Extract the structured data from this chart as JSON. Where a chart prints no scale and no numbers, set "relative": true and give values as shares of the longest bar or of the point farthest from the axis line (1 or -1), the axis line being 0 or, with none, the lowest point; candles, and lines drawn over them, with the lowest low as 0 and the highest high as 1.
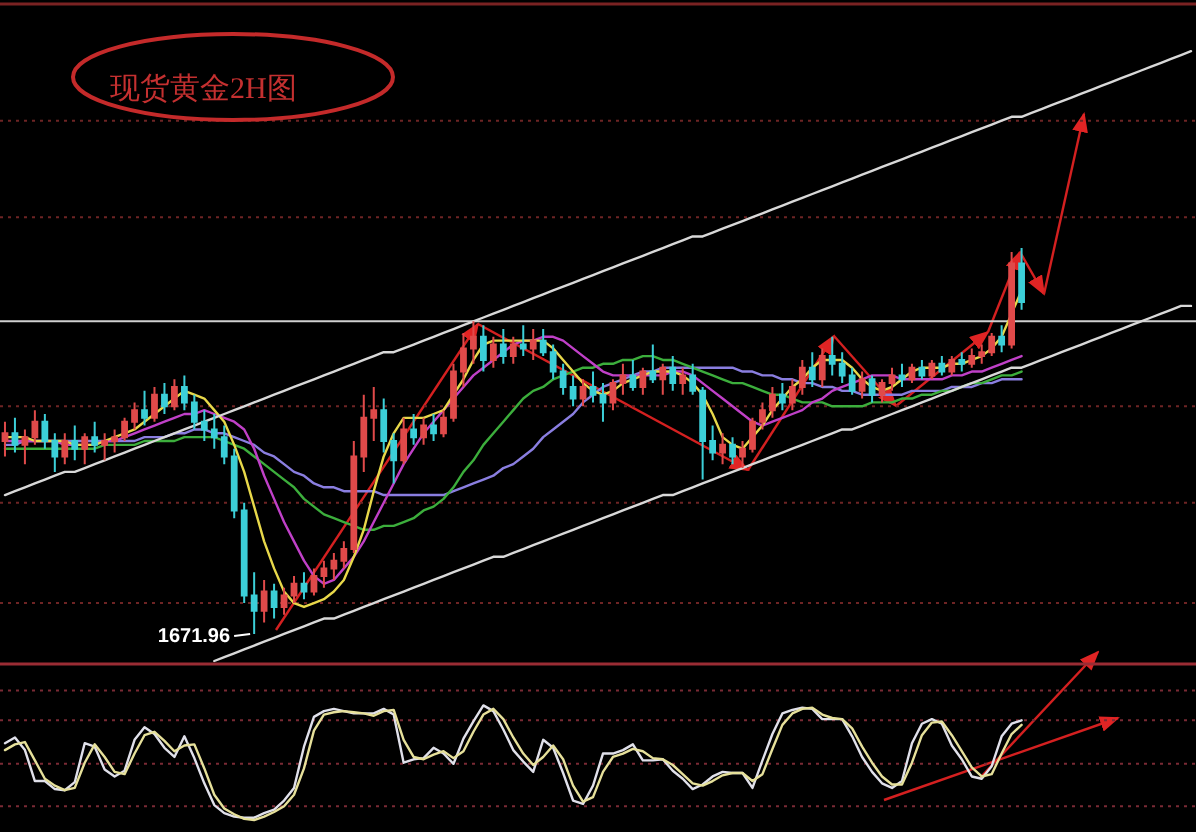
{
  "chart_data": [
    {
      "type": "candlestick",
      "title": "现货黄金2H图",
      "relative": true,
      "categories": [
        null,
        null,
        null,
        null,
        null,
        null,
        null,
        null,
        null,
        null,
        null,
        null,
        null,
        null,
        null,
        null,
        null,
        null,
        null,
        null,
        null,
        null,
        null,
        null,
        null,
        null,
        null,
        null,
        null,
        null,
        null,
        null,
        null,
        null,
        null,
        null,
        null,
        null,
        null,
        null,
        null,
        null,
        null,
        null,
        null,
        null,
        null,
        null,
        null,
        null,
        null,
        null,
        null,
        null,
        null,
        null,
        null,
        null,
        null,
        null,
        null,
        null,
        null,
        null,
        null,
        null,
        null,
        null,
        null,
        null,
        null,
        null,
        null,
        null,
        null,
        null,
        null,
        null,
        null,
        null,
        null,
        null,
        null,
        null,
        null,
        null,
        null,
        null,
        null,
        null,
        null,
        null,
        null,
        null,
        null,
        null,
        null,
        null,
        null,
        null,
        null,
        null,
        null,
        null,
        null,
        null,
        null,
        null,
        null,
        null,
        null,
        null,
        null,
        null,
        null,
        null,
        null,
        null,
        null,
        null
      ],
      "ohlc": [
        [
          0.5,
          0.55,
          0.46,
          0.52
        ],
        [
          0.52,
          0.56,
          0.47,
          0.49
        ],
        [
          0.49,
          0.53,
          0.44,
          0.51
        ],
        [
          0.51,
          0.58,
          0.49,
          0.55
        ],
        [
          0.55,
          0.57,
          0.48,
          0.5
        ],
        [
          0.5,
          0.52,
          0.42,
          0.46
        ],
        [
          0.46,
          0.52,
          0.44,
          0.5
        ],
        [
          0.5,
          0.54,
          0.45,
          0.48
        ],
        [
          0.48,
          0.52,
          0.44,
          0.51
        ],
        [
          0.51,
          0.55,
          0.47,
          0.49
        ],
        [
          0.49,
          0.52,
          0.45,
          0.5
        ],
        [
          0.5,
          0.53,
          0.47,
          0.51
        ],
        [
          0.51,
          0.56,
          0.5,
          0.55
        ],
        [
          0.55,
          0.6,
          0.53,
          0.58
        ],
        [
          0.58,
          0.63,
          0.54,
          0.56
        ],
        [
          0.56,
          0.64,
          0.55,
          0.62
        ],
        [
          0.62,
          0.65,
          0.57,
          0.59
        ],
        [
          0.59,
          0.66,
          0.58,
          0.64
        ],
        [
          0.64,
          0.67,
          0.58,
          0.6
        ],
        [
          0.6,
          0.62,
          0.53,
          0.55
        ],
        [
          0.55,
          0.58,
          0.5,
          0.53
        ],
        [
          0.53,
          0.57,
          0.48,
          0.51
        ],
        [
          0.51,
          0.54,
          0.44,
          0.46
        ],
        [
          0.46,
          0.48,
          0.3,
          0.32
        ],
        [
          0.32,
          0.34,
          0.08,
          0.1
        ],
        [
          0.1,
          0.16,
          0.0,
          0.06
        ],
        [
          0.06,
          0.14,
          0.03,
          0.11
        ],
        [
          0.11,
          0.13,
          0.04,
          0.07
        ],
        [
          0.07,
          0.12,
          0.05,
          0.1
        ],
        [
          0.1,
          0.15,
          0.08,
          0.13
        ],
        [
          0.13,
          0.16,
          0.09,
          0.11
        ],
        [
          0.11,
          0.17,
          0.1,
          0.15
        ],
        [
          0.15,
          0.19,
          0.12,
          0.17
        ],
        [
          0.17,
          0.21,
          0.14,
          0.19
        ],
        [
          0.19,
          0.24,
          0.17,
          0.22
        ],
        [
          0.22,
          0.5,
          0.21,
          0.46
        ],
        [
          0.46,
          0.62,
          0.42,
          0.56
        ],
        [
          0.56,
          0.64,
          0.5,
          0.58
        ],
        [
          0.58,
          0.61,
          0.47,
          0.5
        ],
        [
          0.5,
          0.52,
          0.39,
          0.45
        ],
        [
          0.45,
          0.56,
          0.44,
          0.53
        ],
        [
          0.53,
          0.57,
          0.49,
          0.51
        ],
        [
          0.51,
          0.56,
          0.49,
          0.54
        ],
        [
          0.54,
          0.57,
          0.5,
          0.52
        ],
        [
          0.52,
          0.58,
          0.51,
          0.56
        ],
        [
          0.56,
          0.7,
          0.55,
          0.68
        ],
        [
          0.68,
          0.78,
          0.64,
          0.74
        ],
        [
          0.74,
          0.81,
          0.7,
          0.77
        ],
        [
          0.77,
          0.8,
          0.68,
          0.71
        ],
        [
          0.71,
          0.77,
          0.69,
          0.75
        ],
        [
          0.75,
          0.79,
          0.7,
          0.72
        ],
        [
          0.72,
          0.77,
          0.7,
          0.75
        ],
        [
          0.75,
          0.8,
          0.72,
          0.74
        ],
        [
          0.74,
          0.79,
          0.71,
          0.76
        ],
        [
          0.76,
          0.79,
          0.72,
          0.73
        ],
        [
          0.73,
          0.75,
          0.66,
          0.68
        ],
        [
          0.68,
          0.7,
          0.62,
          0.64
        ],
        [
          0.64,
          0.67,
          0.59,
          0.61
        ],
        [
          0.61,
          0.66,
          0.59,
          0.64
        ],
        [
          0.64,
          0.68,
          0.6,
          0.62
        ],
        [
          0.62,
          0.65,
          0.55,
          0.6
        ],
        [
          0.6,
          0.66,
          0.58,
          0.65
        ],
        [
          0.65,
          0.7,
          0.62,
          0.67
        ],
        [
          0.67,
          0.71,
          0.63,
          0.64
        ],
        [
          0.64,
          0.69,
          0.62,
          0.68
        ],
        [
          0.68,
          0.75,
          0.65,
          0.66
        ],
        [
          0.66,
          0.7,
          0.62,
          0.69
        ],
        [
          0.69,
          0.72,
          0.63,
          0.65
        ],
        [
          0.65,
          0.69,
          0.62,
          0.67
        ],
        [
          0.67,
          0.7,
          0.62,
          0.63
        ],
        [
          0.63,
          0.64,
          0.4,
          0.5
        ],
        [
          0.5,
          0.54,
          0.45,
          0.47
        ],
        [
          0.47,
          0.52,
          0.44,
          0.49
        ],
        [
          0.49,
          0.51,
          0.44,
          0.46
        ],
        [
          0.46,
          0.5,
          0.43,
          0.48
        ],
        [
          0.48,
          0.56,
          0.47,
          0.55
        ],
        [
          0.55,
          0.6,
          0.53,
          0.58
        ],
        [
          0.58,
          0.64,
          0.56,
          0.62
        ],
        [
          0.62,
          0.65,
          0.58,
          0.6
        ],
        [
          0.6,
          0.66,
          0.58,
          0.64
        ],
        [
          0.64,
          0.71,
          0.62,
          0.69
        ],
        [
          0.69,
          0.73,
          0.64,
          0.66
        ],
        [
          0.66,
          0.74,
          0.64,
          0.72
        ],
        [
          0.72,
          0.77,
          0.67,
          0.7
        ],
        [
          0.7,
          0.73,
          0.65,
          0.67
        ],
        [
          0.67,
          0.69,
          0.62,
          0.63
        ],
        [
          0.63,
          0.68,
          0.61,
          0.66
        ],
        [
          0.66,
          0.67,
          0.6,
          0.62
        ],
        [
          0.62,
          0.66,
          0.6,
          0.65
        ],
        [
          0.65,
          0.69,
          0.63,
          0.67
        ],
        [
          0.67,
          0.7,
          0.64,
          0.66
        ],
        [
          0.66,
          0.7,
          0.65,
          0.69
        ],
        [
          0.69,
          0.71,
          0.66,
          0.67
        ],
        [
          0.67,
          0.71,
          0.66,
          0.7
        ],
        [
          0.7,
          0.72,
          0.67,
          0.68
        ],
        [
          0.68,
          0.72,
          0.67,
          0.71
        ],
        [
          0.71,
          0.73,
          0.68,
          0.7
        ],
        [
          0.7,
          0.74,
          0.69,
          0.72
        ],
        [
          0.72,
          0.75,
          0.7,
          0.73
        ],
        [
          0.73,
          0.78,
          0.72,
          0.77
        ],
        [
          0.77,
          0.8,
          0.73,
          0.75
        ],
        [
          0.75,
          0.99,
          0.74,
          0.96
        ],
        [
          0.96,
          1.0,
          0.84,
          0.86
        ],
        null,
        null,
        null,
        null,
        null,
        null,
        null,
        null,
        null,
        null,
        null,
        null,
        null,
        null,
        null,
        null,
        null
      ],
      "colors": [
        "#e04a4a",
        "#3ccfd8",
        "#e04a4a",
        "#e04a4a",
        "#3ccfd8",
        "#3ccfd8",
        "#e04a4a",
        "#3ccfd8",
        "#e04a4a",
        "#3ccfd8",
        "#e04a4a",
        "#e04a4a",
        "#e04a4a",
        "#e04a4a",
        "#3ccfd8",
        "#e04a4a",
        "#3ccfd8",
        "#e04a4a",
        "#3ccfd8",
        "#3ccfd8",
        "#3ccfd8",
        "#3ccfd8",
        "#3ccfd8",
        "#3ccfd8",
        "#3ccfd8",
        "#3ccfd8",
        "#e04a4a",
        "#3ccfd8",
        "#e04a4a",
        "#e04a4a",
        "#3ccfd8",
        "#e04a4a",
        "#e04a4a",
        "#e04a4a",
        "#e04a4a",
        "#e04a4a",
        "#e04a4a",
        "#e04a4a",
        "#3ccfd8",
        "#3ccfd8",
        "#e04a4a",
        "#3ccfd8",
        "#e04a4a",
        "#3ccfd8",
        "#e04a4a",
        "#e04a4a",
        "#e04a4a",
        "#e04a4a",
        "#3ccfd8",
        "#e04a4a",
        "#3ccfd8",
        "#e04a4a",
        "#3ccfd8",
        "#e04a4a",
        "#3ccfd8",
        "#3ccfd8",
        "#3ccfd8",
        "#3ccfd8",
        "#e04a4a",
        "#3ccfd8",
        "#3ccfd8",
        "#e04a4a",
        "#e04a4a",
        "#3ccfd8",
        "#e04a4a",
        "#3ccfd8",
        "#e04a4a",
        "#3ccfd8",
        "#e04a4a",
        "#3ccfd8",
        "#3ccfd8",
        "#3ccfd8",
        "#e04a4a",
        "#3ccfd8",
        "#e04a4a",
        "#e04a4a",
        "#e04a4a",
        "#e04a4a",
        "#3ccfd8",
        "#e04a4a",
        "#e04a4a",
        "#3ccfd8",
        "#e04a4a",
        "#3ccfd8",
        "#3ccfd8",
        "#3ccfd8",
        "#e04a4a",
        "#3ccfd8",
        "#e04a4a",
        "#e04a4a",
        "#3ccfd8",
        "#e04a4a",
        "#3ccfd8",
        "#e04a4a",
        "#3ccfd8",
        "#e04a4a",
        "#3ccfd8",
        "#e04a4a",
        "#e04a4a",
        "#e04a4a",
        "#3ccfd8",
        "#e04a4a",
        "#3ccfd8",
        null,
        null,
        null,
        null,
        null,
        null,
        null,
        null,
        null,
        null,
        null,
        null,
        null,
        null,
        null,
        null,
        null
      ],
      "series": [
        {
          "type": "line",
          "color": "#8a7ee0",
          "values": [
            0.49,
            0.49,
            0.5,
            0.5,
            0.5,
            0.5,
            0.5,
            0.5,
            0.5,
            0.5,
            0.5,
            0.5,
            0.5,
            0.5,
            0.51,
            0.51,
            0.51,
            0.52,
            0.52,
            0.53,
            0.53,
            0.52,
            0.52,
            0.51,
            0.5,
            0.49,
            0.47,
            0.46,
            0.44,
            0.42,
            0.41,
            0.39,
            0.38,
            0.38,
            0.37,
            0.37,
            0.37,
            0.37,
            0.36,
            0.36,
            0.36,
            0.36,
            0.36,
            0.36,
            0.36,
            0.37,
            0.38,
            0.39,
            0.4,
            0.41,
            0.43,
            0.44,
            0.46,
            0.48,
            0.51,
            0.53,
            0.55,
            0.57,
            0.6,
            0.62,
            0.64,
            0.65,
            0.66,
            0.67,
            0.68,
            0.68,
            0.69,
            0.69,
            0.69,
            0.69,
            0.69,
            0.69,
            0.69,
            0.69,
            0.68,
            0.68,
            0.67,
            0.67,
            0.66,
            0.66,
            0.65,
            0.65,
            0.64,
            0.64,
            0.63,
            0.63,
            0.62,
            0.62,
            0.62,
            0.62,
            0.62,
            0.63,
            0.63,
            0.63,
            0.63,
            0.64,
            0.64,
            0.64,
            0.65,
            0.65,
            0.66,
            0.66,
            0.66,
            null,
            null,
            null,
            null,
            null,
            null,
            null,
            null,
            null,
            null,
            null,
            null,
            null,
            null,
            null,
            null,
            null
          ]
        },
        {
          "type": "line",
          "color": "#3cae3c",
          "values": [
            0.48,
            0.48,
            0.48,
            0.48,
            0.48,
            0.48,
            0.48,
            0.48,
            0.48,
            0.48,
            0.49,
            0.49,
            0.49,
            0.49,
            0.5,
            0.5,
            0.5,
            0.5,
            0.51,
            0.51,
            0.51,
            0.51,
            0.5,
            0.49,
            0.48,
            0.46,
            0.44,
            0.42,
            0.4,
            0.38,
            0.35,
            0.33,
            0.31,
            0.3,
            0.29,
            0.28,
            0.27,
            0.27,
            0.28,
            0.28,
            0.29,
            0.3,
            0.32,
            0.33,
            0.35,
            0.38,
            0.42,
            0.45,
            0.49,
            0.52,
            0.55,
            0.58,
            0.61,
            0.63,
            0.64,
            0.66,
            0.67,
            0.68,
            0.69,
            0.69,
            0.7,
            0.7,
            0.71,
            0.71,
            0.72,
            0.72,
            0.71,
            0.71,
            0.7,
            0.69,
            0.68,
            0.67,
            0.66,
            0.65,
            0.65,
            0.64,
            0.63,
            0.62,
            0.62,
            0.61,
            0.6,
            0.6,
            0.6,
            0.59,
            0.59,
            0.59,
            0.59,
            0.6,
            0.6,
            0.6,
            0.61,
            0.61,
            0.62,
            0.62,
            0.63,
            0.63,
            0.64,
            0.65,
            0.65,
            0.66,
            0.67,
            0.67,
            0.68,
            null,
            null,
            null,
            null,
            null,
            null,
            null,
            null,
            null,
            null,
            null,
            null,
            null,
            null,
            null,
            null,
            null
          ]
        },
        {
          "type": "line",
          "color": "#c040c8",
          "values": [
            0.5,
            0.5,
            0.5,
            0.5,
            0.5,
            0.5,
            0.49,
            0.49,
            0.49,
            0.49,
            0.5,
            0.5,
            0.51,
            0.52,
            0.53,
            0.54,
            0.55,
            0.56,
            0.57,
            0.57,
            0.58,
            0.57,
            0.56,
            0.55,
            0.53,
            0.48,
            0.41,
            0.35,
            0.29,
            0.24,
            0.19,
            0.15,
            0.13,
            0.14,
            0.17,
            0.2,
            0.24,
            0.29,
            0.34,
            0.39,
            0.44,
            0.48,
            0.52,
            0.55,
            0.58,
            0.61,
            0.64,
            0.67,
            0.69,
            0.71,
            0.73,
            0.75,
            0.76,
            0.76,
            0.77,
            0.77,
            0.76,
            0.74,
            0.72,
            0.7,
            0.68,
            0.67,
            0.67,
            0.67,
            0.67,
            0.67,
            0.67,
            0.68,
            0.68,
            0.67,
            0.65,
            0.63,
            0.61,
            0.59,
            0.57,
            0.55,
            0.54,
            0.55,
            0.56,
            0.57,
            0.58,
            0.6,
            0.61,
            0.63,
            0.64,
            0.65,
            0.66,
            0.67,
            0.67,
            0.67,
            0.66,
            0.66,
            0.66,
            0.66,
            0.66,
            0.67,
            0.67,
            0.68,
            0.68,
            0.69,
            0.7,
            0.71,
            0.72,
            null,
            null,
            null,
            null,
            null,
            null,
            null,
            null,
            null,
            null,
            null,
            null,
            null,
            null,
            null,
            null,
            null
          ]
        },
        {
          "type": "line",
          "color": "#e8d84a",
          "values": [
            0.51,
            0.51,
            0.51,
            0.5,
            0.5,
            0.5,
            0.5,
            0.49,
            0.49,
            0.49,
            0.5,
            0.51,
            0.52,
            0.53,
            0.55,
            0.57,
            0.59,
            0.61,
            0.63,
            0.62,
            0.61,
            0.58,
            0.55,
            0.49,
            0.42,
            0.33,
            0.24,
            0.17,
            0.11,
            0.08,
            0.07,
            0.08,
            0.09,
            0.11,
            0.14,
            0.2,
            0.27,
            0.37,
            0.46,
            0.52,
            0.56,
            0.56,
            0.56,
            0.57,
            0.58,
            0.62,
            0.66,
            0.71,
            0.75,
            0.76,
            0.76,
            0.76,
            0.76,
            0.76,
            0.76,
            0.74,
            0.71,
            0.68,
            0.65,
            0.63,
            0.62,
            0.63,
            0.65,
            0.66,
            0.67,
            0.68,
            0.68,
            0.68,
            0.67,
            0.65,
            0.62,
            0.57,
            0.51,
            0.49,
            0.48,
            0.51,
            0.54,
            0.58,
            0.61,
            0.64,
            0.66,
            0.69,
            0.71,
            0.71,
            0.71,
            0.69,
            0.66,
            0.64,
            0.63,
            0.64,
            0.66,
            0.68,
            0.69,
            0.69,
            0.69,
            0.7,
            0.7,
            0.71,
            0.72,
            0.74,
            0.77,
            0.83,
            0.89,
            null,
            null,
            null,
            null,
            null,
            null,
            null,
            null,
            null,
            null,
            null,
            null,
            null,
            null,
            null,
            null,
            null
          ]
        },
        {
          "type": "line",
          "color": "#d8d8d8",
          "values": [
            0.36,
            0.37,
            0.38,
            0.39,
            0.4,
            0.41,
            0.42,
            0.42,
            0.43,
            0.44,
            0.45,
            0.46,
            0.47,
            0.48,
            0.49,
            0.5,
            0.51,
            0.52,
            0.53,
            0.54,
            0.55,
            0.56,
            0.57,
            0.58,
            0.59,
            0.6,
            0.61,
            0.62,
            0.63,
            0.64,
            0.65,
            0.66,
            0.67,
            0.68,
            0.69,
            0.7,
            0.71,
            0.72,
            0.73,
            0.73,
            0.74,
            0.75,
            0.76,
            0.77,
            0.78,
            0.79,
            0.8,
            0.81,
            0.82,
            0.83,
            0.84,
            0.85,
            0.86,
            0.87,
            0.88,
            0.89,
            0.9,
            0.91,
            0.92,
            0.93,
            0.94,
            0.95,
            0.96,
            0.97,
            0.98,
            0.99,
            1.0,
            1.01,
            1.02,
            1.03,
            1.03,
            1.04,
            1.05,
            1.06,
            1.07,
            1.08,
            1.09,
            1.1,
            1.11,
            1.12,
            1.13,
            1.14,
            1.15,
            1.16,
            1.17,
            1.18,
            1.19,
            1.2,
            1.21,
            1.22,
            1.23,
            1.24,
            1.25,
            1.26,
            1.27,
            1.28,
            1.29,
            1.3,
            1.31,
            1.32,
            1.33,
            1.34,
            1.34,
            1.35,
            1.36,
            1.37,
            1.38,
            1.39,
            1.4,
            1.41,
            1.42,
            1.43,
            1.44,
            1.45,
            1.46,
            1.47,
            1.48,
            1.49,
            1.5,
            1.51
          ]
        },
        {
          "type": "line",
          "color": "#d8d8d8",
          "values": [
            null,
            null,
            null,
            null,
            null,
            null,
            null,
            null,
            null,
            null,
            null,
            null,
            null,
            null,
            null,
            null,
            null,
            null,
            null,
            null,
            null,
            -0.07,
            -0.06,
            -0.05,
            -0.04,
            -0.03,
            -0.02,
            -0.01,
            0.0,
            0.01,
            0.02,
            0.03,
            0.04,
            0.04,
            0.05,
            0.06,
            0.07,
            0.08,
            0.09,
            0.1,
            0.11,
            0.12,
            0.13,
            0.14,
            0.15,
            0.16,
            0.17,
            0.18,
            0.19,
            0.2,
            0.2,
            0.21,
            0.22,
            0.23,
            0.24,
            0.25,
            0.26,
            0.27,
            0.28,
            0.29,
            0.3,
            0.31,
            0.32,
            0.33,
            0.34,
            0.35,
            0.36,
            0.36,
            0.37,
            0.38,
            0.39,
            0.4,
            0.41,
            0.42,
            0.43,
            0.44,
            0.45,
            0.46,
            0.47,
            0.48,
            0.49,
            0.5,
            0.51,
            0.52,
            0.53,
            0.53,
            0.54,
            0.55,
            0.56,
            0.57,
            0.58,
            0.59,
            0.6,
            0.61,
            0.62,
            0.63,
            0.64,
            0.65,
            0.66,
            0.67,
            0.68,
            0.69,
            0.69,
            0.7,
            0.71,
            0.72,
            0.73,
            0.74,
            0.75,
            0.76,
            0.77,
            0.78,
            0.79,
            0.8,
            0.81,
            0.82,
            0.83,
            0.84,
            0.85,
            0.85
          ]
        }
      ],
      "ref_lines": [
        {
          "axis": "y",
          "value": 1.33,
          "color": "#6e2424",
          "line_style": "dotted"
        },
        {
          "axis": "y",
          "value": 1.08,
          "color": "#6e2424",
          "line_style": "dotted"
        },
        {
          "axis": "y",
          "value": 0.81,
          "color": "#d0d0d0",
          "line_style": "solid"
        },
        {
          "axis": "y",
          "value": 0.59,
          "color": "#6e2424",
          "line_style": "dotted"
        },
        {
          "axis": "y",
          "value": 0.34,
          "color": "#6e2424",
          "line_style": "dotted"
        },
        {
          "axis": "y",
          "value": 0.08,
          "color": "#6e2424",
          "line_style": "dotted"
        }
      ],
      "annotations": [
        "1671.96"
      ]
    },
    {
      "type": "line",
      "relative": true,
      "categories": [
        null,
        null,
        null,
        null,
        null,
        null,
        null,
        null,
        null,
        null,
        null,
        null,
        null,
        null,
        null,
        null,
        null,
        null,
        null,
        null,
        null,
        null,
        null,
        null,
        null,
        null,
        null,
        null,
        null,
        null,
        null,
        null,
        null,
        null,
        null,
        null,
        null,
        null,
        null,
        null,
        null,
        null,
        null,
        null,
        null,
        null,
        null,
        null,
        null,
        null,
        null,
        null,
        null,
        null,
        null,
        null,
        null,
        null,
        null,
        null,
        null,
        null,
        null,
        null,
        null,
        null,
        null,
        null,
        null,
        null,
        null,
        null,
        null,
        null,
        null,
        null,
        null,
        null,
        null,
        null,
        null,
        null,
        null,
        null,
        null,
        null,
        null,
        null,
        null,
        null,
        null,
        null,
        null,
        null,
        null,
        null,
        null,
        null,
        null,
        null,
        null,
        null,
        null,
        null,
        null,
        null,
        null,
        null,
        null,
        null,
        null,
        null,
        null,
        null,
        null,
        null,
        null,
        null,
        null,
        null
      ],
      "series": [
        {
          "color": "#e0e0ea",
          "values": [
            0.67,
            0.72,
            0.61,
            0.34,
            0.34,
            0.27,
            0.26,
            0.33,
            0.67,
            0.64,
            0.44,
            0.38,
            0.43,
            0.7,
            0.81,
            0.75,
            0.63,
            0.55,
            0.73,
            0.54,
            0.32,
            0.13,
            0.06,
            0.03,
            0.02,
            0.02,
            0.06,
            0.09,
            0.17,
            0.28,
            0.64,
            0.9,
            0.95,
            0.97,
            0.95,
            0.93,
            0.93,
            0.93,
            0.97,
            0.92,
            0.5,
            0.53,
            0.54,
            0.63,
            0.58,
            0.49,
            0.71,
            0.86,
            1.0,
            0.95,
            0.79,
            0.61,
            0.51,
            0.42,
            0.7,
            0.63,
            0.41,
            0.17,
            0.14,
            0.3,
            0.58,
            0.58,
            0.61,
            0.66,
            0.52,
            0.52,
            0.53,
            0.43,
            0.36,
            0.27,
            0.31,
            0.38,
            0.42,
            0.41,
            0.41,
            0.28,
            0.52,
            0.75,
            0.93,
            0.96,
            0.98,
            0.97,
            0.88,
            0.88,
            0.88,
            0.73,
            0.55,
            0.42,
            0.32,
            0.28,
            0.34,
            0.67,
            0.84,
            0.88,
            0.84,
            0.65,
            0.53,
            0.38,
            0.36,
            0.47,
            0.73,
            0.84,
            0.87,
            null,
            null,
            null,
            null,
            null,
            null,
            null,
            null,
            null,
            null,
            null,
            null,
            null,
            null,
            null,
            null,
            null
          ]
        },
        {
          "color": "#e6e09a",
          "values": [
            0.61,
            0.66,
            0.68,
            0.52,
            0.36,
            0.3,
            0.26,
            0.28,
            0.5,
            0.66,
            0.55,
            0.42,
            0.4,
            0.58,
            0.74,
            0.77,
            0.69,
            0.6,
            0.65,
            0.66,
            0.45,
            0.22,
            0.1,
            0.05,
            0.01,
            0.0,
            0.03,
            0.07,
            0.12,
            0.22,
            0.45,
            0.78,
            0.92,
            0.94,
            0.95,
            0.94,
            0.93,
            0.91,
            0.95,
            0.96,
            0.7,
            0.55,
            0.53,
            0.57,
            0.6,
            0.54,
            0.6,
            0.77,
            0.92,
            0.97,
            0.88,
            0.72,
            0.58,
            0.48,
            0.55,
            0.65,
            0.53,
            0.3,
            0.16,
            0.2,
            0.42,
            0.55,
            0.58,
            0.62,
            0.6,
            0.54,
            0.53,
            0.48,
            0.4,
            0.32,
            0.3,
            0.34,
            0.39,
            0.41,
            0.41,
            0.34,
            0.4,
            0.62,
            0.83,
            0.93,
            0.97,
            0.98,
            0.92,
            0.89,
            0.88,
            0.8,
            0.64,
            0.5,
            0.38,
            0.31,
            0.31,
            0.5,
            0.74,
            0.85,
            0.86,
            0.74,
            0.6,
            0.46,
            0.38,
            0.4,
            0.58,
            0.75,
            0.83,
            null,
            null,
            null,
            null,
            null,
            null,
            null,
            null,
            null,
            null,
            null,
            null,
            null,
            null,
            null,
            null,
            null
          ]
        }
      ],
      "ref_lines": [
        {
          "axis": "y",
          "value": 1.13,
          "color": "#7a2a34",
          "line_style": "dotted"
        },
        {
          "axis": "y",
          "value": 0.87,
          "color": "#7a2a34",
          "line_style": "dotted"
        },
        {
          "axis": "y",
          "value": 0.49,
          "color": "#7a2a34",
          "line_style": "dotted"
        },
        {
          "axis": "y",
          "value": 0.12,
          "color": "#7a2a34",
          "line_style": "dotted"
        }
      ]
    }
  ]
}
